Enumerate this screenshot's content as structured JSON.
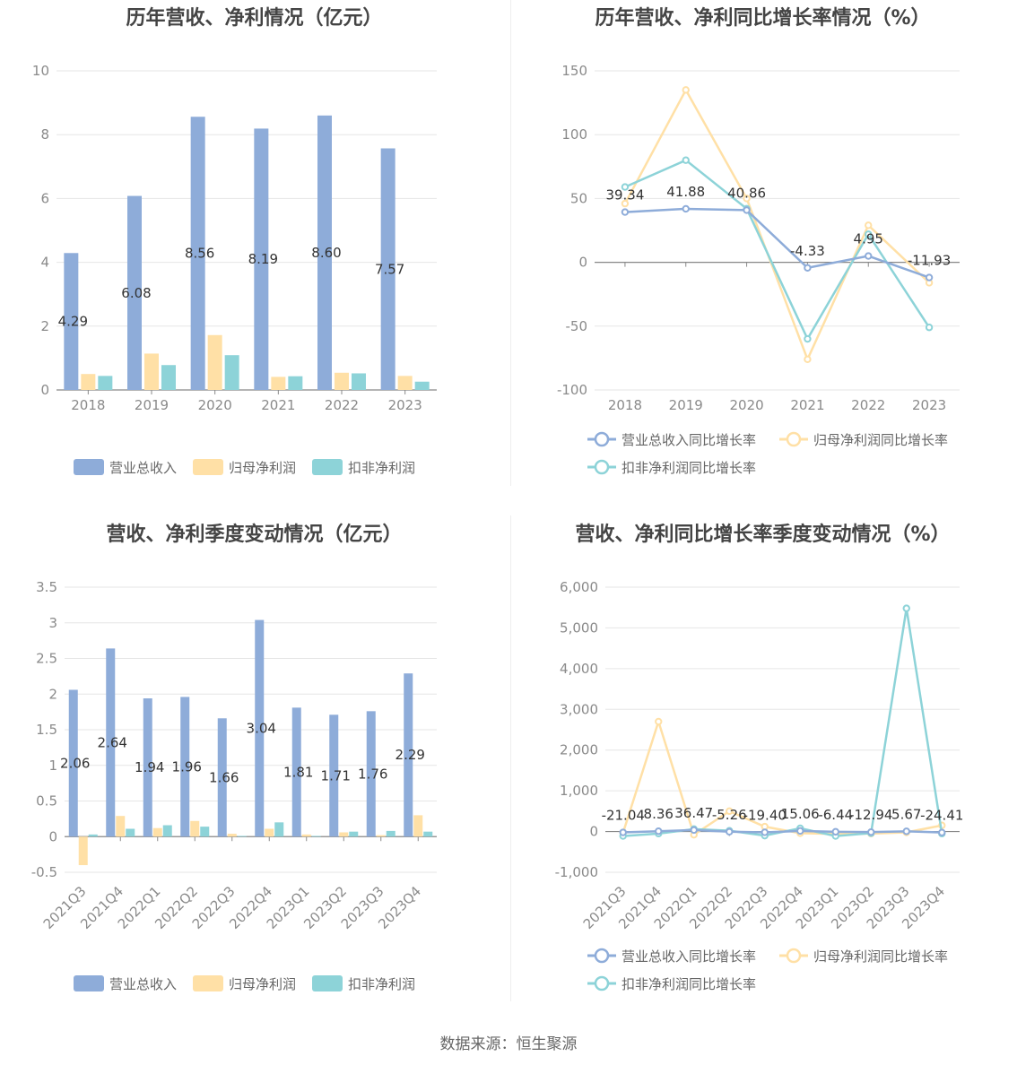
{
  "source_label": "数据来源：恒生聚源",
  "colors": {
    "revenue": "#8eacd9",
    "net_profit": "#ffe0a6",
    "deducted": "#8dd3d8",
    "revenue_line": "#8eacd9",
    "net_profit_line": "#ffe0a6",
    "deducted_line": "#8dd3d8"
  },
  "chart_data": [
    {
      "id": "annual-bar",
      "type": "bar",
      "title": "历年营收、净利情况（亿元）",
      "categories": [
        "2018",
        "2019",
        "2020",
        "2021",
        "2022",
        "2023"
      ],
      "series": [
        {
          "name": "营业总收入",
          "values": [
            4.29,
            6.08,
            8.56,
            8.19,
            8.6,
            7.57
          ],
          "labels": [
            "4.29",
            "6.08",
            "8.56",
            "8.19",
            "8.60",
            "7.57"
          ]
        },
        {
          "name": "归母净利润",
          "values": [
            0.5,
            1.14,
            1.72,
            0.41,
            0.54,
            0.44
          ]
        },
        {
          "name": "扣非净利润",
          "values": [
            0.44,
            0.78,
            1.09,
            0.43,
            0.52,
            0.26
          ]
        }
      ],
      "ylim": [
        0,
        10
      ],
      "yticks": [
        "0",
        "2",
        "4",
        "6",
        "8",
        "10"
      ],
      "legend": "bottom"
    },
    {
      "id": "annual-line",
      "type": "line",
      "title": "历年营收、净利同比增长率情况（%）",
      "categories": [
        "2018",
        "2019",
        "2020",
        "2021",
        "2022",
        "2023"
      ],
      "series": [
        {
          "name": "营业总收入同比增长率",
          "values": [
            39.34,
            41.88,
            40.86,
            -4.33,
            4.95,
            -11.93
          ],
          "labels": [
            "39.34",
            "41.88",
            "40.86",
            "-4.33",
            "4.95",
            "-11.93"
          ]
        },
        {
          "name": "归母净利润同比增长率",
          "values": [
            46,
            135,
            50,
            -76,
            29,
            -16
          ]
        },
        {
          "name": "扣非净利润同比增长率",
          "values": [
            59,
            80,
            42,
            -60,
            22,
            -51
          ]
        }
      ],
      "ylim": [
        -100,
        150
      ],
      "yticks": [
        "-100",
        "-50",
        "0",
        "50",
        "100",
        "150"
      ],
      "legend": "bottom"
    },
    {
      "id": "quarterly-bar",
      "type": "bar",
      "title": "营收、净利季度变动情况（亿元）",
      "categories": [
        "2021Q3",
        "2021Q4",
        "2022Q1",
        "2022Q2",
        "2022Q3",
        "2022Q4",
        "2023Q1",
        "2023Q2",
        "2023Q3",
        "2023Q4"
      ],
      "series": [
        {
          "name": "营业总收入",
          "values": [
            2.06,
            2.64,
            1.94,
            1.96,
            1.66,
            3.04,
            1.81,
            1.71,
            1.76,
            2.29
          ],
          "labels": [
            "2.06",
            "2.64",
            "1.94",
            "1.96",
            "1.66",
            "3.04",
            "1.81",
            "1.71",
            "1.76",
            "2.29"
          ]
        },
        {
          "name": "归母净利润",
          "values": [
            -0.4,
            0.29,
            0.12,
            0.22,
            0.04,
            0.11,
            0.03,
            0.06,
            0.02,
            0.3
          ]
        },
        {
          "name": "扣非净利润",
          "values": [
            0.03,
            0.11,
            0.16,
            0.14,
            0.01,
            0.2,
            0.01,
            0.07,
            0.08,
            0.07
          ]
        }
      ],
      "ylim": [
        -0.5,
        3.5
      ],
      "yticks": [
        "-0.5",
        "0",
        "0.5",
        "1",
        "1.5",
        "2",
        "2.5",
        "3",
        "3.5"
      ],
      "legend": "bottom"
    },
    {
      "id": "quarterly-line",
      "type": "line",
      "title": "营收、净利同比增长率季度变动情况（%）",
      "categories": [
        "2021Q3",
        "2021Q4",
        "2022Q1",
        "2022Q2",
        "2022Q3",
        "2022Q4",
        "2023Q1",
        "2023Q2",
        "2023Q3",
        "2023Q4"
      ],
      "series": [
        {
          "name": "营业总收入同比增长率",
          "values": [
            -21.04,
            8.36,
            36.47,
            -5.26,
            -19.4,
            15.06,
            -6.44,
            -12.94,
            5.67,
            -24.41
          ],
          "labels": [
            "-21.04",
            "8.36",
            "36.47",
            "-5.26",
            "-19.40",
            "15.06",
            "-6.44",
            "-12.94",
            "5.67",
            "-24.41"
          ]
        },
        {
          "name": "归母净利润同比增长率",
          "values": [
            -30,
            2700,
            -80,
            500,
            120,
            -40,
            -60,
            -50,
            -20,
            150
          ]
        },
        {
          "name": "扣非净利润同比增长率",
          "values": [
            -110,
            -50,
            60,
            20,
            -100,
            80,
            -110,
            -40,
            5480,
            -50
          ]
        }
      ],
      "ylim": [
        -1000,
        6000
      ],
      "yticks": [
        "-1,000",
        "0",
        "1,000",
        "2,000",
        "3,000",
        "4,000",
        "5,000",
        "6,000"
      ],
      "legend": "bottom"
    }
  ]
}
